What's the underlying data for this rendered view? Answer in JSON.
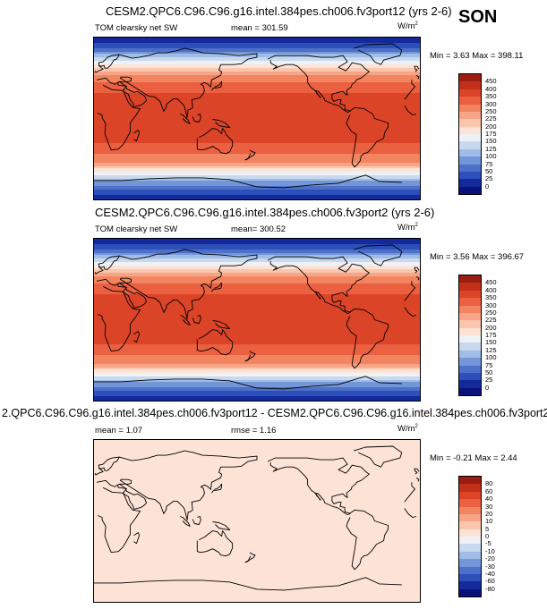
{
  "season": "SON",
  "panels": [
    {
      "title": "CESM2.QPC6.C96.C96.g16.intel.384pes.ch006.fv3port12 (yrs 2-6)",
      "left_label": "TOM clearsky net SW",
      "center_label": "mean = 301.59",
      "units": "W/m",
      "units_sup": "2",
      "minmax": "Min =  3.63 Max = 398.11"
    },
    {
      "title": "CESM2.QPC6.C96.C96.g16.intel.384pes.ch006.fv3port2 (yrs 2-6)",
      "left_label": "TOM clearsky net SW",
      "center_label": "mean= 300.52",
      "units": "W/m",
      "units_sup": "2",
      "minmax": "Min =  3.56 Max = 396.67"
    },
    {
      "title": "2.QPC6.C96.C96.g16.intel.384pes.ch006.fv3port12 - CESM2.QPC6.C96.C96.g16.intel.384pes.ch006.fv3port2",
      "left_label": "mean =  1.07",
      "center_label": "rmse =  1.16",
      "units": "W/m",
      "units_sup": "2",
      "minmax": "Min = -0.21 Max =  2.44"
    }
  ],
  "chart_data": [
    {
      "type": "heatmap",
      "title": "CESM2.QPC6.C96.C96.g16.intel.384pes.ch006.fv3port12 (yrs 2-6)",
      "variable": "TOM clearsky net SW",
      "mean": 301.59,
      "min": 3.63,
      "max": 398.11,
      "colorbar_levels": [
        "450",
        "400",
        "350",
        "300",
        "250",
        "225",
        "200",
        "175",
        "150",
        "125",
        "100",
        "75",
        "50",
        "25",
        "0"
      ],
      "colorbar_colors": [
        "#9b1c10",
        "#c2301a",
        "#dc4428",
        "#ea6040",
        "#f2845f",
        "#f7a586",
        "#fac6ad",
        "#fde3d6",
        "#eef1f6",
        "#c8d9ee",
        "#9fbde6",
        "#7396d8",
        "#4d70c9",
        "#2c4fba",
        "#13299c",
        "#0a127a"
      ],
      "zonal_profile_lat": [
        90,
        80,
        70,
        60,
        50,
        40,
        30,
        20,
        10,
        0,
        -10,
        -20,
        -30,
        -40,
        -50,
        -60,
        -70,
        -80,
        -90
      ],
      "zonal_profile_value": [
        5,
        40,
        110,
        180,
        240,
        300,
        345,
        380,
        395,
        395,
        390,
        375,
        345,
        300,
        240,
        175,
        100,
        40,
        5
      ]
    },
    {
      "type": "heatmap",
      "title": "CESM2.QPC6.C96.C96.g16.intel.384pes.ch006.fv3port2 (yrs 2-6)",
      "variable": "TOM clearsky net SW",
      "mean": 300.52,
      "min": 3.56,
      "max": 396.67,
      "colorbar_levels": [
        "450",
        "400",
        "350",
        "300",
        "250",
        "225",
        "200",
        "175",
        "150",
        "125",
        "100",
        "75",
        "50",
        "25",
        "0"
      ],
      "colorbar_colors": [
        "#9b1c10",
        "#c2301a",
        "#dc4428",
        "#ea6040",
        "#f2845f",
        "#f7a586",
        "#fac6ad",
        "#fde3d6",
        "#eef1f6",
        "#c8d9ee",
        "#9fbde6",
        "#7396d8",
        "#4d70c9",
        "#2c4fba",
        "#13299c",
        "#0a127a"
      ],
      "zonal_profile_lat": [
        90,
        80,
        70,
        60,
        50,
        40,
        30,
        20,
        10,
        0,
        -10,
        -20,
        -30,
        -40,
        -50,
        -60,
        -70,
        -80,
        -90
      ],
      "zonal_profile_value": [
        5,
        40,
        110,
        180,
        240,
        300,
        345,
        380,
        395,
        395,
        390,
        375,
        345,
        300,
        240,
        175,
        100,
        40,
        5
      ]
    },
    {
      "type": "heatmap",
      "title": "2.QPC6.C96.C96.g16.intel.384pes.ch006.fv3port12 - CESM2.QPC6.C96.C96.g16.intel.384pes.ch006.fv3port2",
      "variable": "difference",
      "mean": 1.07,
      "rmse": 1.16,
      "min": -0.21,
      "max": 2.44,
      "colorbar_levels": [
        "80",
        "60",
        "40",
        "30",
        "20",
        "10",
        "5",
        "0",
        "-5",
        "-10",
        "-20",
        "-30",
        "-40",
        "-60",
        "-80"
      ],
      "colorbar_colors": [
        "#9b1c10",
        "#c2301a",
        "#dc4428",
        "#ea6040",
        "#f2845f",
        "#f7a586",
        "#fac6ad",
        "#fde3d6",
        "#eef1f6",
        "#c8d9ee",
        "#9fbde6",
        "#7396d8",
        "#4d70c9",
        "#2c4fba",
        "#13299c",
        "#0a127a"
      ],
      "fill_color": "#fde3d6"
    }
  ]
}
